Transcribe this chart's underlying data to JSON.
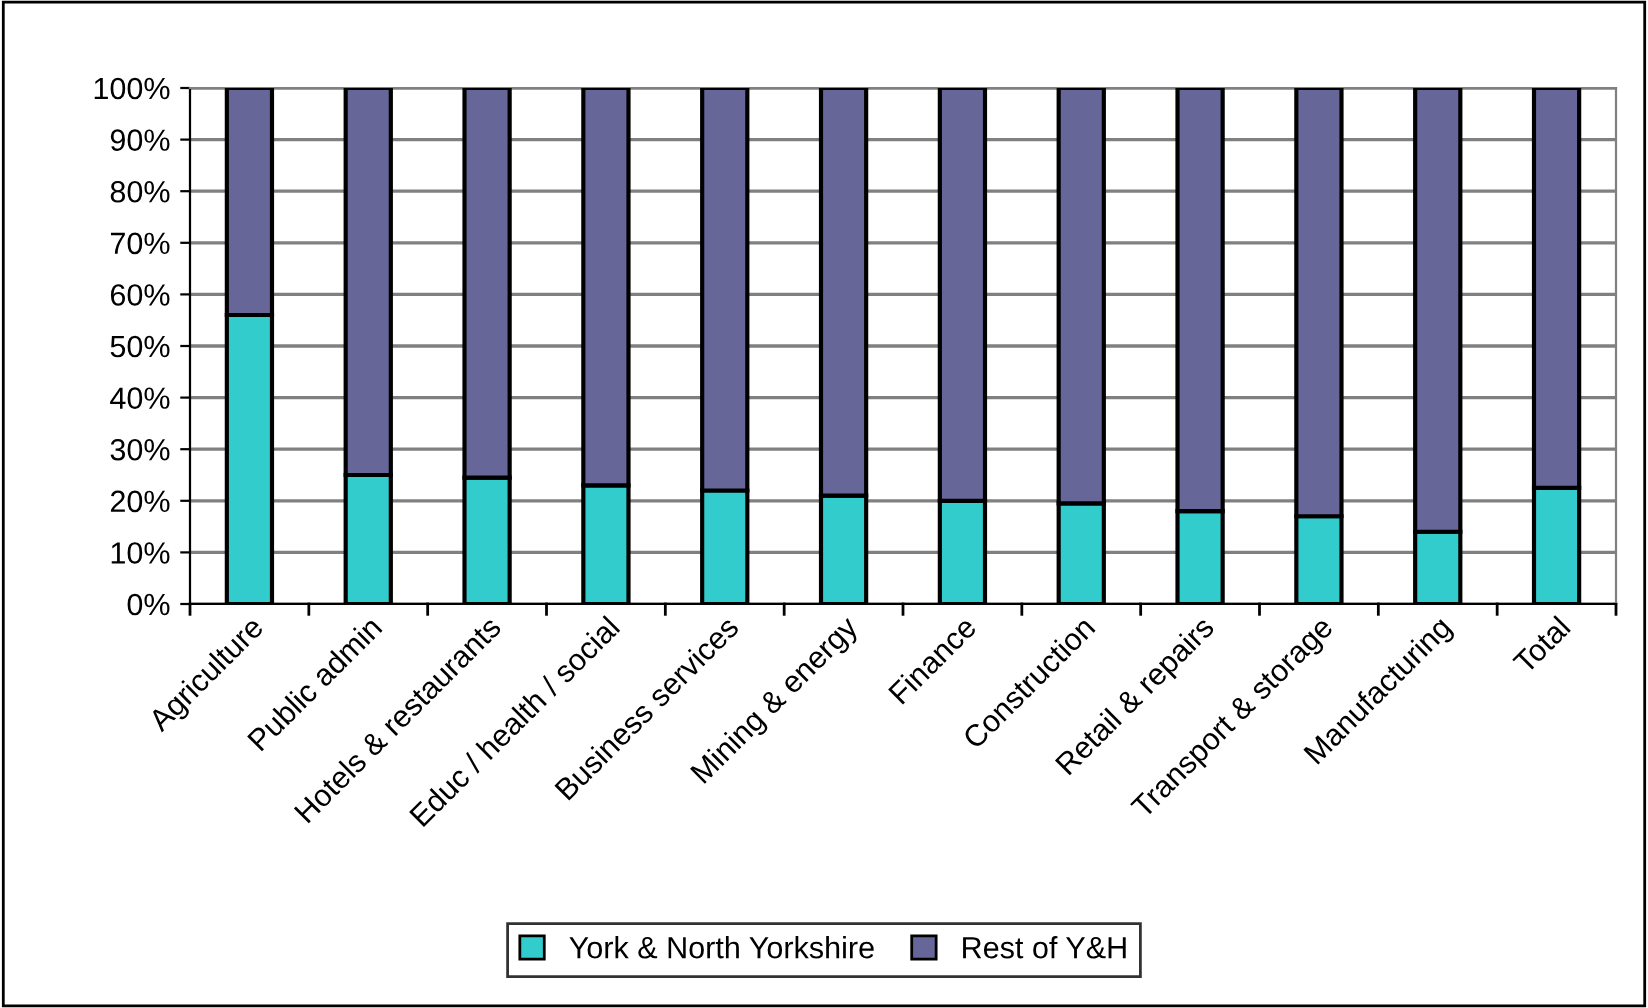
{
  "chart_data": {
    "type": "bar",
    "stacked": true,
    "categories": [
      "Agriculture",
      "Public admin",
      "Hotels & restaurants",
      "Educ / health / social",
      "Business services",
      "Mining & energy",
      "Finance",
      "Construction",
      "Retail & repairs",
      "Transport & storage",
      "Manufacturing",
      "Total"
    ],
    "series": [
      {
        "name": "York & North Yorkshire",
        "color": "#33cccc",
        "values": [
          56,
          25,
          24.5,
          23,
          22,
          21,
          20,
          19.5,
          18,
          17,
          14,
          22.5
        ]
      },
      {
        "name": "Rest of Y&H",
        "color": "#666699",
        "values": [
          44,
          75,
          75.5,
          77,
          78,
          79,
          80,
          80.5,
          82,
          83,
          86,
          77.5
        ]
      }
    ],
    "ylim": [
      0,
      100
    ],
    "yticks": [
      {
        "value": 0,
        "label": "0%"
      },
      {
        "value": 10,
        "label": "10%"
      },
      {
        "value": 20,
        "label": "20%"
      },
      {
        "value": 30,
        "label": "30%"
      },
      {
        "value": 40,
        "label": "40%"
      },
      {
        "value": 50,
        "label": "50%"
      },
      {
        "value": 60,
        "label": "60%"
      },
      {
        "value": 70,
        "label": "70%"
      },
      {
        "value": 80,
        "label": "80%"
      },
      {
        "value": 90,
        "label": "90%"
      },
      {
        "value": 100,
        "label": "100%"
      }
    ],
    "grid": "y",
    "legend": "bottom"
  }
}
